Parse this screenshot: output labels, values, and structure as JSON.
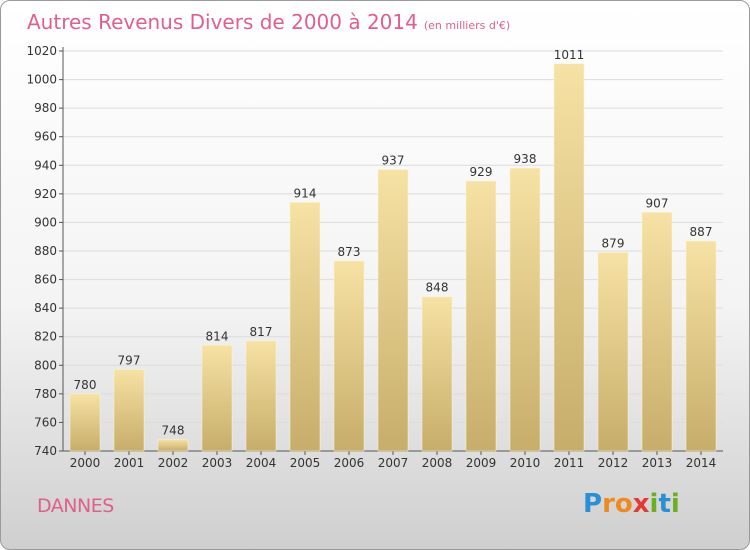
{
  "title": "Autres Revenus Divers de 2000 à 2014",
  "subtitle": "(en milliers d'€)",
  "commune": "DANNES",
  "logo": {
    "letters": [
      "P",
      "r",
      "o",
      "x",
      "i",
      "t",
      "i"
    ],
    "colors": [
      "#2a8fd6",
      "#f08a1c",
      "#f08a1c",
      "#e53935",
      "#6ab023",
      "#2a8fd6",
      "#6ab023"
    ]
  },
  "colors": {
    "accent": "#e0608a",
    "bar_top": "#f6e2a4",
    "bar_bottom": "#c7ad6a",
    "grid": "#dcdcdc"
  },
  "chart_data": {
    "type": "bar",
    "categories": [
      "2000",
      "2001",
      "2002",
      "2003",
      "2004",
      "2005",
      "2006",
      "2007",
      "2008",
      "2009",
      "2010",
      "2011",
      "2012",
      "2013",
      "2014"
    ],
    "values": [
      780,
      797,
      748,
      814,
      817,
      914,
      873,
      937,
      848,
      929,
      938,
      1011,
      879,
      907,
      887
    ],
    "title": "Autres Revenus Divers de 2000 à 2014",
    "xlabel": "",
    "ylabel": "",
    "ylim": [
      740,
      1020
    ],
    "yticks": [
      740,
      760,
      780,
      800,
      820,
      840,
      860,
      880,
      900,
      920,
      940,
      960,
      980,
      1000,
      1020
    ],
    "grid": true,
    "data_labels": true
  }
}
